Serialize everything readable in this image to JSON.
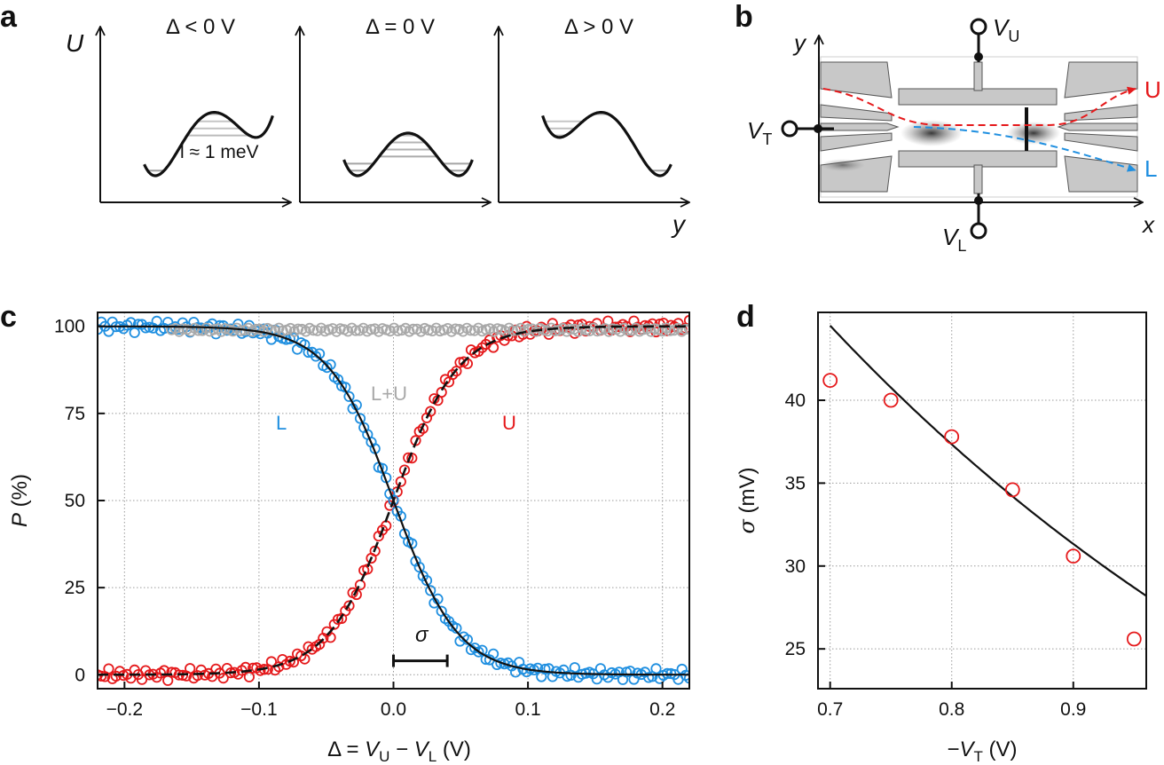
{
  "panel_labels": {
    "a": "a",
    "b": "b",
    "c": "c",
    "d": "d"
  },
  "panel_a": {
    "y_axis_label": "U",
    "x_axis_label": "y",
    "wells": [
      {
        "title": "Δ < 0 V",
        "asymmetry": -1
      },
      {
        "title": "Δ = 0 V",
        "asymmetry": 0
      },
      {
        "title": "Δ > 0 V",
        "asymmetry": 1
      }
    ],
    "annotation": "l ≈ 1 meV"
  },
  "panel_b": {
    "x_axis_label": "x",
    "y_axis_label": "y",
    "gate_top": {
      "prefix": "V",
      "sub": "U"
    },
    "gate_left": {
      "prefix": "V",
      "sub": "T"
    },
    "gate_bottom": {
      "prefix": "V",
      "sub": "L"
    },
    "path_upper": "U",
    "path_lower": "L"
  },
  "colors": {
    "upper": "#e5191b",
    "lower": "#1f8fe0",
    "sum": "#a9a9a9",
    "fit": "#000000",
    "grid": "#9a9a9a"
  },
  "chart_data": [
    {
      "type": "scatter",
      "panel": "c",
      "title": "",
      "xlabel_parts": {
        "a": "Δ = ",
        "v1": "V",
        "s1": "U",
        "minus": " − ",
        "v2": "V",
        "s2": "L",
        "unit": " (V)"
      },
      "ylabel_parts": {
        "sym": "P",
        "unit": " (%)"
      },
      "xlim": [
        -0.22,
        0.22
      ],
      "ylim": [
        -4,
        104
      ],
      "x_ticks": [
        -0.2,
        -0.1,
        0.0,
        0.1,
        0.2
      ],
      "x_tick_labels": [
        "−0.2",
        "−0.1",
        "0.0",
        "0.1",
        "0.2"
      ],
      "y_ticks": [
        0,
        25,
        50,
        75,
        100
      ],
      "y_tick_labels": [
        "0",
        "25",
        "50",
        "75",
        "100"
      ],
      "grid": true,
      "annotations": {
        "sum_label": "L+U",
        "lower_label": "L",
        "upper_label": "U",
        "sigma_label": "σ"
      },
      "sigma_bar": {
        "x_start": 0.0,
        "x_end": 0.04,
        "y": 4
      },
      "fit": {
        "model": "logistic",
        "center": 0.0,
        "width": 0.024
      },
      "series": [
        {
          "name": "U",
          "color": "#e5191b",
          "x_start": -0.22,
          "x_end": 0.22,
          "n_points": 161,
          "rises": true
        },
        {
          "name": "L",
          "color": "#1f8fe0",
          "x_start": -0.22,
          "x_end": 0.22,
          "n_points": 161,
          "rises": false
        },
        {
          "name": "L+U",
          "color": "#a9a9a9",
          "x_start": -0.165,
          "x_end": 0.22,
          "n_points": 136,
          "level": 99
        }
      ]
    },
    {
      "type": "scatter",
      "panel": "d",
      "title": "",
      "xlabel_parts": {
        "minus": "−",
        "v": "V",
        "s": "T",
        "unit": " (V)"
      },
      "ylabel_parts": {
        "sym": "σ",
        "unit": " (mV)"
      },
      "xlim": [
        0.69,
        0.96
      ],
      "ylim": [
        22.6,
        45.3
      ],
      "x_ticks": [
        0.7,
        0.8,
        0.9
      ],
      "x_tick_labels": [
        "0.7",
        "0.8",
        "0.9"
      ],
      "y_ticks": [
        25,
        30,
        35,
        40
      ],
      "y_tick_labels": [
        "25",
        "30",
        "35",
        "40"
      ],
      "grid": true,
      "series": [
        {
          "name": "sigma",
          "color": "#e5191b",
          "x": [
            0.7,
            0.75,
            0.8,
            0.85,
            0.9,
            0.95
          ],
          "y": [
            41.2,
            40.0,
            37.8,
            34.6,
            30.6,
            25.6
          ]
        }
      ],
      "fit": {
        "model": "exponential",
        "x": [
          0.7,
          0.75,
          0.8,
          0.85,
          0.9,
          0.96
        ],
        "y": [
          44.5,
          40.0,
          36.2,
          33.0,
          30.3,
          28.2
        ]
      }
    }
  ]
}
